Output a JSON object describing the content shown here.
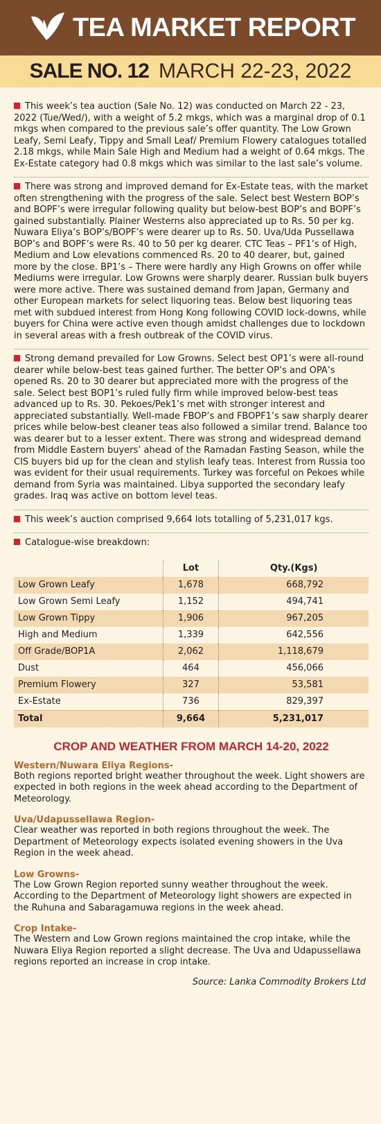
{
  "header": {
    "title": "TEA MARKET REPORT",
    "sale": "SALE NO. 12",
    "date": "MARCH 22-23, 2022"
  },
  "paragraphs": [
    "This week’s tea auction (Sale No. 12) was conducted on March 22 - 23, 2022 (Tue/Wed/), with a weight of 5.2 mkgs, which was a marginal drop of 0.1 mkgs when compared to the previous sale’s offer quantity. The Low Grown Leafy, Semi Leafy, Tippy and Small Leaf/ Premium Flowery catalogues totalled 2.18 mkgs, while Main Sale High and Medium had a weight of 0.64 mkgs. The Ex-Estate category had 0.8 mkgs which was similar to the last sale’s volume.",
    "There was strong and improved demand for Ex-Estate teas, with the market often strengthening with the progress of the sale. Select best Western BOP’s and BOPF’s were irregular following quality but below-best BOP’s and BOPF’s gained substantially. Plainer Westerns also appreciated up to Rs. 50 per kg. Nuwara Eliya’s BOP’s/BOPF’s were dearer up to Rs. 50. Uva/Uda Pussellawa BOP’s and BOPF’s were Rs. 40 to 50 per kg dearer. CTC Teas – PF1’s of High, Medium and Low elevations commenced Rs. 20 to 40 dearer, but, gained more by the close. BP1’s – There were hardly any High Growns on offer while Mediums were irregular. Low Growns were sharply dearer. Russian bulk buyers were more active. There was sustained demand from Japan, Germany and other European markets for select liquoring teas. Below best liquoring teas met with subdued interest from Hong Kong following COVID lock-downs, while buyers for China were active even though amidst challenges due to lockdown in several areas with a fresh outbreak of the COVID virus.",
    "Strong demand prevailed for Low Growns. Select best OP1’s were all-round dearer while below-best teas gained further. The better OP’s and OPA’s opened Rs. 20 to 30 dearer but appreciated more with the progress of the sale. Select best BOP1’s ruled fully firm while improved below-best teas advanced up to Rs. 30. Pekoes/Pek1’s met with stronger interest and appreciated substantially. Well-made FBOP’s and FBOPF1’s saw sharply dearer prices while below-best cleaner teas also followed a similar trend. Balance too was dearer but to a lesser extent. There was strong and widespread demand from Middle Eastern buyers’ ahead of the Ramadan Fasting Season, while the CIS buyers bid up for the clean and stylish leafy teas. Interest from Russia too was evident for their usual requirements. Turkey was forceful on Pekoes while demand from Syria was maintained. Libya supported the secondary leafy grades. Iraq was active on bottom level teas.",
    "This week’s auction comprised 9,664 lots totalling of 5,231,017 kgs."
  ],
  "catalogue_label": "Catalogue-wise breakdown:",
  "table": {
    "columns": [
      "Lot",
      "Qty.(Kgs)"
    ],
    "rows": [
      [
        "Low Grown Leafy",
        "1,678",
        "668,792"
      ],
      [
        "Low Grown Semi Leafy",
        "1,152",
        "494,741"
      ],
      [
        "Low Grown Tippy",
        "1,906",
        "967,205"
      ],
      [
        "High and Medium",
        "1,339",
        "642,556"
      ],
      [
        "Off Grade/BOP1A",
        "2,062",
        "1,118,679"
      ],
      [
        "Dust",
        "464",
        "456,066"
      ],
      [
        "Premium Flowery",
        "327",
        "53,581"
      ],
      [
        "Ex-Estate",
        "736",
        "829,397"
      ]
    ],
    "total": [
      "Total",
      "9,664",
      "5,231,017"
    ]
  },
  "crop": {
    "title": "CROP AND WEATHER FROM MARCH 14-20, 2022",
    "sections": [
      {
        "heading": "Western/Nuwara Eliya Regions-",
        "text": "Both regions reported bright weather throughout the week. Light showers are expected in both regions in the week ahead according to the Department of Meteorology."
      },
      {
        "heading": "Uva/Udapussellawa Region-",
        "text": "Clear weather was reported in both regions throughout the week. The Department of Meteorology expects isolated evening showers in the Uva Region in the week ahead."
      },
      {
        "heading": "Low Growns-",
        "text": "The Low Grown Region reported sunny weather throughout the week. According to the Department of Meteorology light showers are expected in the Ruhuna and Sabaragamuwa regions in the week ahead."
      },
      {
        "heading": "Crop Intake-",
        "text": "The Western and Low Grown regions maintained the crop intake, while the Nuwara Eliya Region reported a slight decrease. The Uva and Udapussellawa regions reported an increase in crop intake."
      }
    ]
  },
  "source": "Source: Lanka Commodity Brokers Ltd"
}
